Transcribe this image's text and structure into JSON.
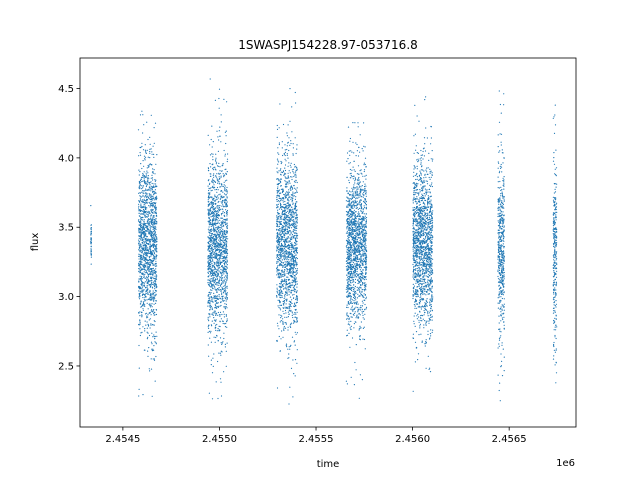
{
  "chart_data": {
    "type": "scatter",
    "title": "1SWASPJ154228.97-053716.8",
    "xlabel": "time",
    "ylabel": "flux",
    "x_offset_label": "1e6",
    "xlim": [
      2454278,
      2456846
    ],
    "ylim": [
      2.06,
      4.72
    ],
    "x_ticks": [
      2454500,
      2455000,
      2455500,
      2456000,
      2456500
    ],
    "x_tick_labels": [
      "2.4545",
      "2.4550",
      "2.4555",
      "2.4560",
      "2.4565"
    ],
    "y_ticks": [
      2.5,
      3.0,
      3.5,
      4.0,
      4.5
    ],
    "y_tick_labels": [
      "2.5",
      "3.0",
      "3.5",
      "4.0",
      "4.5"
    ],
    "grid": false,
    "marker_color": "#1f77b4",
    "seasons": [
      {
        "x_start": 2454334,
        "x_end": 2454337,
        "y_center": 3.42,
        "y_min": 3.15,
        "y_max": 3.72
      },
      {
        "x_start": 2454581,
        "x_end": 2454676,
        "y_center": 3.36,
        "y_min": 2.23,
        "y_max": 4.55
      },
      {
        "x_start": 2454940,
        "x_end": 2455042,
        "y_center": 3.35,
        "y_min": 2.19,
        "y_max": 4.6
      },
      {
        "x_start": 2455296,
        "x_end": 2455404,
        "y_center": 3.38,
        "y_min": 2.19,
        "y_max": 4.5
      },
      {
        "x_start": 2455657,
        "x_end": 2455762,
        "y_center": 3.37,
        "y_min": 2.26,
        "y_max": 4.37
      },
      {
        "x_start": 2456002,
        "x_end": 2456104,
        "y_center": 3.37,
        "y_min": 2.23,
        "y_max": 4.44
      },
      {
        "x_start": 2456442,
        "x_end": 2456475,
        "y_center": 3.32,
        "y_min": 2.2,
        "y_max": 4.49
      },
      {
        "x_start": 2456728,
        "x_end": 2456746,
        "y_center": 3.28,
        "y_min": 2.24,
        "y_max": 4.59
      }
    ]
  }
}
